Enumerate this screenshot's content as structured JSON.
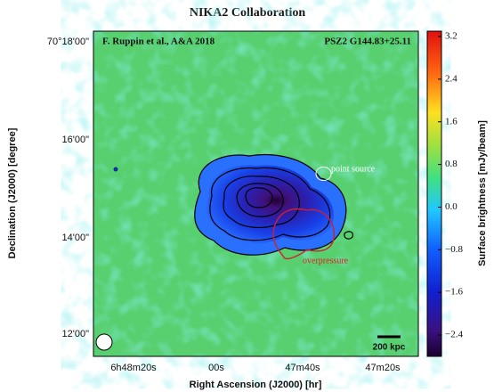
{
  "chart_data": {
    "type": "map",
    "title": "NIKA2 Collaboration",
    "annotations": {
      "credit": "F. Ruppin et al., A&A 2018",
      "target": "PSZ2 G144.83+25.11",
      "point_source": "point source",
      "overpressure": "overpressure",
      "scale_bar": "200 kpc"
    },
    "x_label": "Right Ascension (J2000) [hr]",
    "y_label": "Declination (J2000) [degree]",
    "xticklabels": [
      "6h48m20s",
      "00s",
      "47m40s",
      "47m20s"
    ],
    "yticklabels": [
      "70°18'00\"",
      "16'00\"",
      "14'00\"",
      "12'00\""
    ],
    "colorbar": {
      "label": "Surface brightness [mJy/beam]",
      "lim": [
        -2.8,
        3.3
      ],
      "ticks": [
        3.2,
        2.4,
        1.6,
        0.8,
        {
          "value": 0,
          "label": "0.0"
        },
        {
          "value": -0.8,
          "label": "−0.8"
        },
        {
          "value": -1.6,
          "label": "−1.6"
        },
        {
          "value": -2.4,
          "label": "−2.4"
        }
      ]
    }
  }
}
